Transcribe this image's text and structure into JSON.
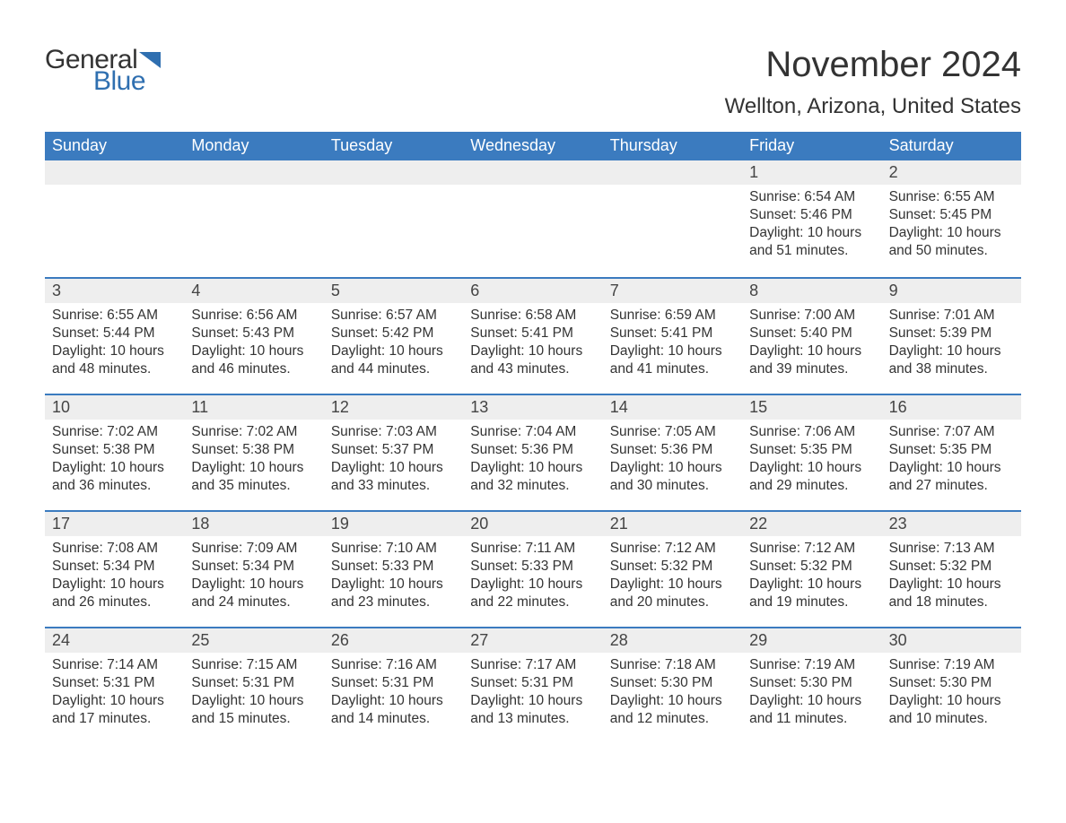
{
  "brand": {
    "general": "General",
    "blue": "Blue",
    "flag_color": "#2f6fb0"
  },
  "header": {
    "month_title": "November 2024",
    "location": "Wellton, Arizona, United States"
  },
  "colors": {
    "header_bg": "#3b7bbf",
    "header_text": "#ffffff",
    "daynum_bg": "#eeeeee",
    "border": "#3b7bbf",
    "body_text": "#333333",
    "brand_blue": "#2f6fb0"
  },
  "weekdays": [
    "Sunday",
    "Monday",
    "Tuesday",
    "Wednesday",
    "Thursday",
    "Friday",
    "Saturday"
  ],
  "weeks": [
    [
      {
        "n": "",
        "empty": true
      },
      {
        "n": "",
        "empty": true
      },
      {
        "n": "",
        "empty": true
      },
      {
        "n": "",
        "empty": true
      },
      {
        "n": "",
        "empty": true
      },
      {
        "n": "1",
        "sunrise": "Sunrise: 6:54 AM",
        "sunset": "Sunset: 5:46 PM",
        "daylight1": "Daylight: 10 hours",
        "daylight2": "and 51 minutes."
      },
      {
        "n": "2",
        "sunrise": "Sunrise: 6:55 AM",
        "sunset": "Sunset: 5:45 PM",
        "daylight1": "Daylight: 10 hours",
        "daylight2": "and 50 minutes."
      }
    ],
    [
      {
        "n": "3",
        "sunrise": "Sunrise: 6:55 AM",
        "sunset": "Sunset: 5:44 PM",
        "daylight1": "Daylight: 10 hours",
        "daylight2": "and 48 minutes."
      },
      {
        "n": "4",
        "sunrise": "Sunrise: 6:56 AM",
        "sunset": "Sunset: 5:43 PM",
        "daylight1": "Daylight: 10 hours",
        "daylight2": "and 46 minutes."
      },
      {
        "n": "5",
        "sunrise": "Sunrise: 6:57 AM",
        "sunset": "Sunset: 5:42 PM",
        "daylight1": "Daylight: 10 hours",
        "daylight2": "and 44 minutes."
      },
      {
        "n": "6",
        "sunrise": "Sunrise: 6:58 AM",
        "sunset": "Sunset: 5:41 PM",
        "daylight1": "Daylight: 10 hours",
        "daylight2": "and 43 minutes."
      },
      {
        "n": "7",
        "sunrise": "Sunrise: 6:59 AM",
        "sunset": "Sunset: 5:41 PM",
        "daylight1": "Daylight: 10 hours",
        "daylight2": "and 41 minutes."
      },
      {
        "n": "8",
        "sunrise": "Sunrise: 7:00 AM",
        "sunset": "Sunset: 5:40 PM",
        "daylight1": "Daylight: 10 hours",
        "daylight2": "and 39 minutes."
      },
      {
        "n": "9",
        "sunrise": "Sunrise: 7:01 AM",
        "sunset": "Sunset: 5:39 PM",
        "daylight1": "Daylight: 10 hours",
        "daylight2": "and 38 minutes."
      }
    ],
    [
      {
        "n": "10",
        "sunrise": "Sunrise: 7:02 AM",
        "sunset": "Sunset: 5:38 PM",
        "daylight1": "Daylight: 10 hours",
        "daylight2": "and 36 minutes."
      },
      {
        "n": "11",
        "sunrise": "Sunrise: 7:02 AM",
        "sunset": "Sunset: 5:38 PM",
        "daylight1": "Daylight: 10 hours",
        "daylight2": "and 35 minutes."
      },
      {
        "n": "12",
        "sunrise": "Sunrise: 7:03 AM",
        "sunset": "Sunset: 5:37 PM",
        "daylight1": "Daylight: 10 hours",
        "daylight2": "and 33 minutes."
      },
      {
        "n": "13",
        "sunrise": "Sunrise: 7:04 AM",
        "sunset": "Sunset: 5:36 PM",
        "daylight1": "Daylight: 10 hours",
        "daylight2": "and 32 minutes."
      },
      {
        "n": "14",
        "sunrise": "Sunrise: 7:05 AM",
        "sunset": "Sunset: 5:36 PM",
        "daylight1": "Daylight: 10 hours",
        "daylight2": "and 30 minutes."
      },
      {
        "n": "15",
        "sunrise": "Sunrise: 7:06 AM",
        "sunset": "Sunset: 5:35 PM",
        "daylight1": "Daylight: 10 hours",
        "daylight2": "and 29 minutes."
      },
      {
        "n": "16",
        "sunrise": "Sunrise: 7:07 AM",
        "sunset": "Sunset: 5:35 PM",
        "daylight1": "Daylight: 10 hours",
        "daylight2": "and 27 minutes."
      }
    ],
    [
      {
        "n": "17",
        "sunrise": "Sunrise: 7:08 AM",
        "sunset": "Sunset: 5:34 PM",
        "daylight1": "Daylight: 10 hours",
        "daylight2": "and 26 minutes."
      },
      {
        "n": "18",
        "sunrise": "Sunrise: 7:09 AM",
        "sunset": "Sunset: 5:34 PM",
        "daylight1": "Daylight: 10 hours",
        "daylight2": "and 24 minutes."
      },
      {
        "n": "19",
        "sunrise": "Sunrise: 7:10 AM",
        "sunset": "Sunset: 5:33 PM",
        "daylight1": "Daylight: 10 hours",
        "daylight2": "and 23 minutes."
      },
      {
        "n": "20",
        "sunrise": "Sunrise: 7:11 AM",
        "sunset": "Sunset: 5:33 PM",
        "daylight1": "Daylight: 10 hours",
        "daylight2": "and 22 minutes."
      },
      {
        "n": "21",
        "sunrise": "Sunrise: 7:12 AM",
        "sunset": "Sunset: 5:32 PM",
        "daylight1": "Daylight: 10 hours",
        "daylight2": "and 20 minutes."
      },
      {
        "n": "22",
        "sunrise": "Sunrise: 7:12 AM",
        "sunset": "Sunset: 5:32 PM",
        "daylight1": "Daylight: 10 hours",
        "daylight2": "and 19 minutes."
      },
      {
        "n": "23",
        "sunrise": "Sunrise: 7:13 AM",
        "sunset": "Sunset: 5:32 PM",
        "daylight1": "Daylight: 10 hours",
        "daylight2": "and 18 minutes."
      }
    ],
    [
      {
        "n": "24",
        "sunrise": "Sunrise: 7:14 AM",
        "sunset": "Sunset: 5:31 PM",
        "daylight1": "Daylight: 10 hours",
        "daylight2": "and 17 minutes."
      },
      {
        "n": "25",
        "sunrise": "Sunrise: 7:15 AM",
        "sunset": "Sunset: 5:31 PM",
        "daylight1": "Daylight: 10 hours",
        "daylight2": "and 15 minutes."
      },
      {
        "n": "26",
        "sunrise": "Sunrise: 7:16 AM",
        "sunset": "Sunset: 5:31 PM",
        "daylight1": "Daylight: 10 hours",
        "daylight2": "and 14 minutes."
      },
      {
        "n": "27",
        "sunrise": "Sunrise: 7:17 AM",
        "sunset": "Sunset: 5:31 PM",
        "daylight1": "Daylight: 10 hours",
        "daylight2": "and 13 minutes."
      },
      {
        "n": "28",
        "sunrise": "Sunrise: 7:18 AM",
        "sunset": "Sunset: 5:30 PM",
        "daylight1": "Daylight: 10 hours",
        "daylight2": "and 12 minutes."
      },
      {
        "n": "29",
        "sunrise": "Sunrise: 7:19 AM",
        "sunset": "Sunset: 5:30 PM",
        "daylight1": "Daylight: 10 hours",
        "daylight2": "and 11 minutes."
      },
      {
        "n": "30",
        "sunrise": "Sunrise: 7:19 AM",
        "sunset": "Sunset: 5:30 PM",
        "daylight1": "Daylight: 10 hours",
        "daylight2": "and 10 minutes."
      }
    ]
  ]
}
